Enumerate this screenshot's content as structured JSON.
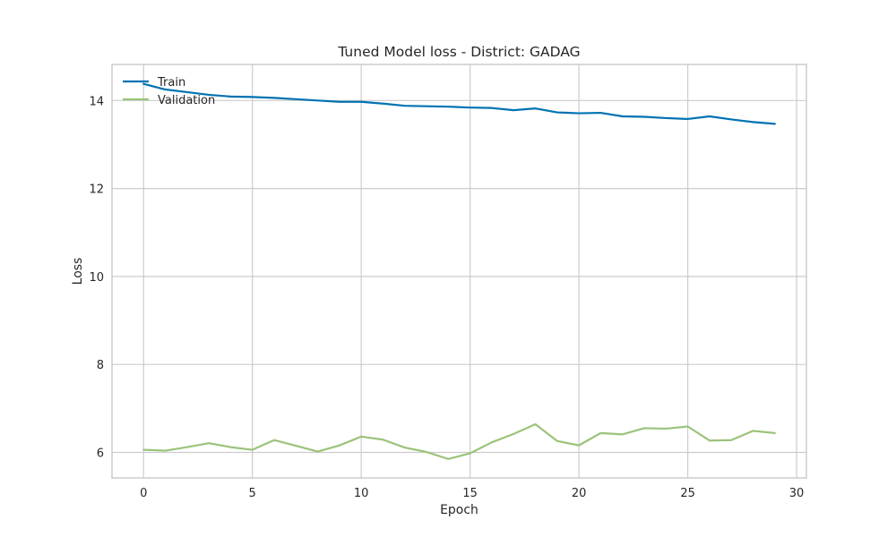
{
  "chart_data": {
    "type": "line",
    "title": "Tuned Model loss - District: GADAG",
    "xlabel": "Epoch",
    "ylabel": "Loss",
    "xlim": [
      -1.45,
      30.45
    ],
    "ylim": [
      5.42,
      14.82
    ],
    "xticks": [
      0,
      5,
      10,
      15,
      20,
      25,
      30
    ],
    "yticks": [
      6,
      8,
      10,
      12,
      14
    ],
    "grid": true,
    "legend_position": "top-left",
    "x": [
      0,
      1,
      2,
      3,
      4,
      5,
      6,
      7,
      8,
      9,
      10,
      11,
      12,
      13,
      14,
      15,
      16,
      17,
      18,
      19,
      20,
      21,
      22,
      23,
      24,
      25,
      26,
      27,
      28,
      29
    ],
    "series": [
      {
        "name": "Train",
        "color": "#0072b2",
        "values": [
          14.38,
          14.25,
          14.19,
          14.13,
          14.09,
          14.08,
          14.06,
          14.03,
          14.0,
          13.97,
          13.97,
          13.93,
          13.88,
          13.87,
          13.86,
          13.84,
          13.83,
          13.78,
          13.82,
          13.73,
          13.71,
          13.72,
          13.64,
          13.63,
          13.6,
          13.58,
          13.64,
          13.57,
          13.51,
          13.47
        ]
      },
      {
        "name": "Validation",
        "color": "#9bc37a",
        "values": [
          6.06,
          6.04,
          6.12,
          6.21,
          6.12,
          6.06,
          6.28,
          6.15,
          6.02,
          6.16,
          6.36,
          6.29,
          6.11,
          6.01,
          5.85,
          5.98,
          6.23,
          6.42,
          6.64,
          6.26,
          6.16,
          6.44,
          6.41,
          6.55,
          6.54,
          6.59,
          6.27,
          6.28,
          6.49,
          6.44
        ]
      }
    ]
  },
  "colors": {
    "grid": "#cccccc",
    "frame": "#cccccc",
    "text": "#262626",
    "background": "#ffffff"
  }
}
